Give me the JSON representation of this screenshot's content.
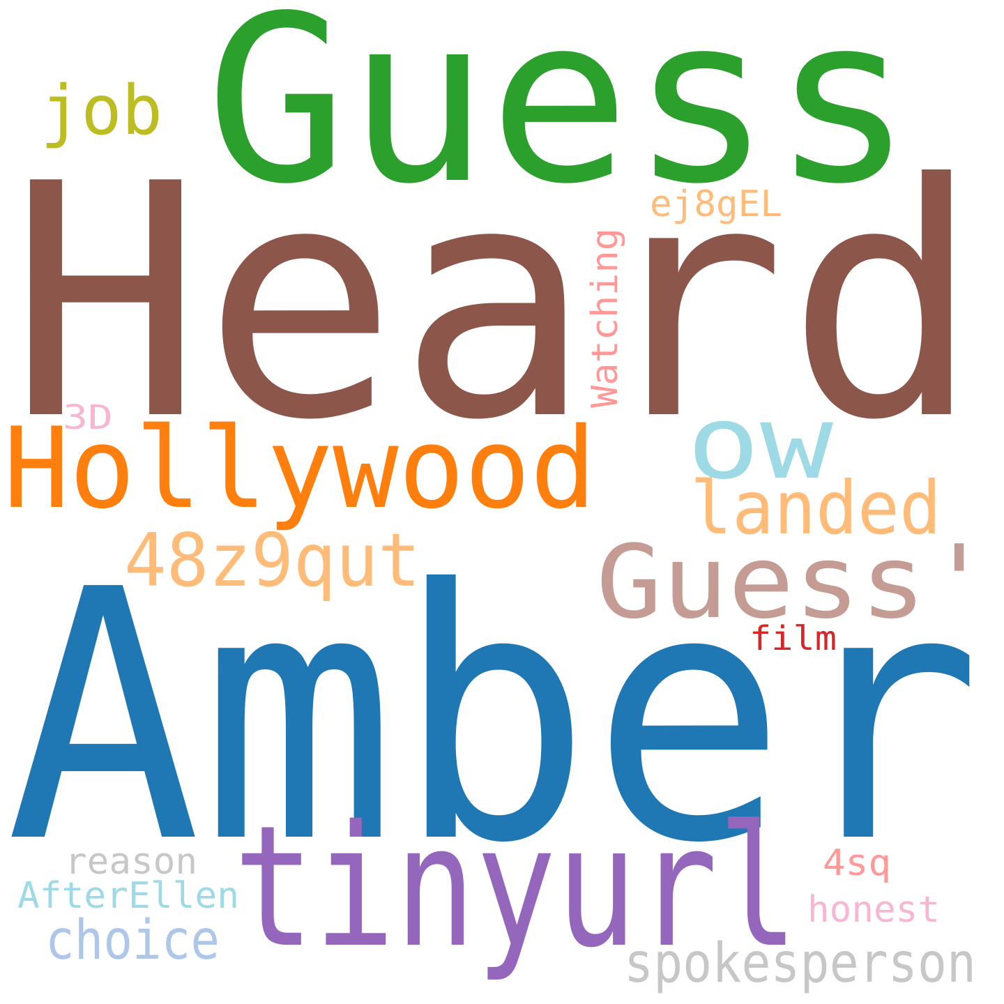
{
  "words": [
    {
      "id": "heard",
      "text": "Heard",
      "color": "#8c564b"
    },
    {
      "id": "amber",
      "text": "Amber",
      "color": "#1f77b4"
    },
    {
      "id": "guess",
      "text": "Guess",
      "color": "#2ca02c"
    },
    {
      "id": "tinyurl",
      "text": "tinyurl",
      "color": "#9467bd"
    },
    {
      "id": "hollywood",
      "text": "Hollywood",
      "color": "#ff7f0e"
    },
    {
      "id": "guess-apostrophe",
      "text": "Guess'",
      "color": "#c49c94"
    },
    {
      "id": "ow",
      "text": "ow",
      "color": "#9edae5"
    },
    {
      "id": "48z9qut",
      "text": "48z9qut",
      "color": "#ffbb78"
    },
    {
      "id": "landed",
      "text": "landed",
      "color": "#ffbb78"
    },
    {
      "id": "job",
      "text": "job",
      "color": "#bcbd22"
    },
    {
      "id": "spokesperson",
      "text": "spokesperson",
      "color": "#c7c7c7"
    },
    {
      "id": "choice",
      "text": "choice",
      "color": "#aec7e8"
    },
    {
      "id": "ej8gel",
      "text": "ej8gEL",
      "color": "#ffbb78"
    },
    {
      "id": "watching",
      "text": "Watching",
      "color": "#ff9896"
    },
    {
      "id": "reason",
      "text": "reason",
      "color": "#c7c7c7"
    },
    {
      "id": "afterellen",
      "text": "AfterEllen",
      "color": "#9edae5"
    },
    {
      "id": "honest",
      "text": "honest",
      "color": "#f7b6d2"
    },
    {
      "id": "film",
      "text": "film",
      "color": "#d62728"
    },
    {
      "id": "4sq",
      "text": "4sq",
      "color": "#ff9896"
    },
    {
      "id": "3d",
      "text": "3D",
      "color": "#f7b6d2"
    }
  ]
}
